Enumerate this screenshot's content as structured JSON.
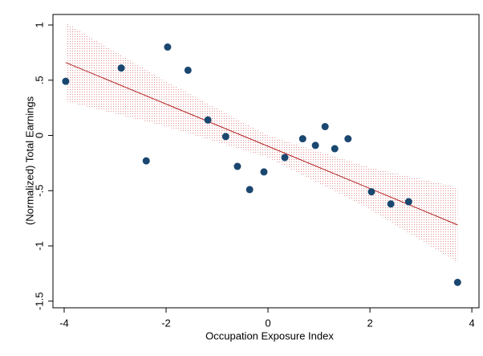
{
  "chart_data": {
    "type": "scatter",
    "xlabel": "Occupation Exposure Index",
    "ylabel": "(Normalized) Total Earnings",
    "x": [
      -3.97,
      -2.88,
      -2.39,
      -1.97,
      -1.57,
      -1.18,
      -0.83,
      -0.6,
      -0.36,
      -0.08,
      0.33,
      0.68,
      0.93,
      1.12,
      1.31,
      1.57,
      2.03,
      2.41,
      2.76,
      3.72
    ],
    "y": [
      0.49,
      0.61,
      -0.23,
      0.8,
      0.59,
      0.14,
      -0.01,
      -0.28,
      -0.49,
      -0.33,
      -0.2,
      -0.03,
      -0.09,
      0.08,
      -0.12,
      -0.03,
      -0.51,
      -0.62,
      -0.6,
      -1.33
    ],
    "color": "#1a476f",
    "fit": {
      "x": [
        -3.97,
        -2,
        0,
        2,
        3.72
      ],
      "values": [
        0.66,
        0.284,
        -0.098,
        -0.48,
        -0.81
      ],
      "upper": [
        1.02,
        0.49,
        0.0,
        -0.29,
        -0.47
      ],
      "lower": [
        0.31,
        0.08,
        -0.2,
        -0.67,
        -1.15
      ],
      "color": "#b22222"
    },
    "xlim": [
      -4.22,
      4.14
    ],
    "ylim": [
      -1.56,
      1.095
    ],
    "xticks": [
      -4,
      -2,
      0,
      2,
      4
    ],
    "yticks": [
      {
        "value": -1.5,
        "label": "-1.5"
      },
      -1,
      {
        "value": -0.5,
        "label": "-.5"
      },
      0,
      {
        "value": 0.5,
        "label": ".5"
      },
      1
    ]
  }
}
